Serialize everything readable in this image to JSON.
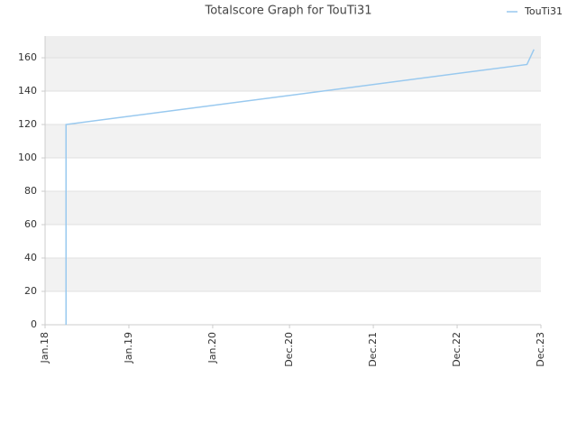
{
  "chart_data": {
    "type": "line",
    "title": "Totalscore Graph for TouTi31",
    "x": [
      "2018-04",
      "2018-04",
      "2018-04",
      "2023-10",
      "2023-11"
    ],
    "series": [
      {
        "name": "TouTi31",
        "color": "#99c9ef",
        "values": [
          0,
          10,
          120,
          156,
          165
        ]
      }
    ],
    "xlim": [
      "2018-01",
      "2023-12"
    ],
    "xticks": [
      {
        "value": "2018-01",
        "label": "Jan.18"
      },
      {
        "value": "2019-01",
        "label": "Jan.19"
      },
      {
        "value": "2020-01",
        "label": "Jan.20"
      },
      {
        "value": "2020-12",
        "label": "Dec.20"
      },
      {
        "value": "2021-12",
        "label": "Dec.21"
      },
      {
        "value": "2022-12",
        "label": "Dec.22"
      },
      {
        "value": "2023-12",
        "label": "Dec.23"
      }
    ],
    "ylim": [
      0,
      173
    ],
    "yticks": [
      0,
      20,
      40,
      60,
      80,
      100,
      120,
      140,
      160
    ],
    "grid": true,
    "legend": "top-right"
  }
}
